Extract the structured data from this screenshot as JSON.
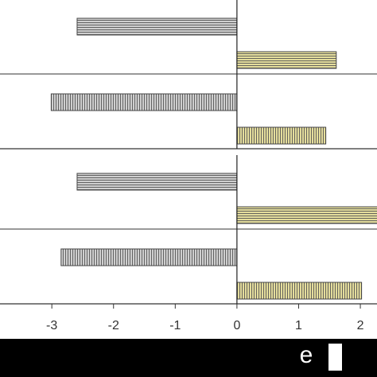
{
  "chart_data": [
    {
      "type": "bar",
      "orientation": "horizontal",
      "categories": [
        null,
        null
      ],
      "series": [
        {
          "color": "#cfcfcf",
          "values": [
            -2.59,
            -3.01
          ]
        },
        {
          "color": "#e4dd9c",
          "values": [
            1.61,
            1.44
          ]
        }
      ],
      "xlim": [
        -3.84,
        2.27
      ]
    },
    {
      "type": "bar",
      "orientation": "horizontal",
      "categories": [
        null,
        null
      ],
      "series": [
        {
          "color": "#cfcfcf",
          "values": [
            -2.59,
            -2.85
          ]
        },
        {
          "color": "#e4dd9c",
          "values": [
            2.3,
            2.02
          ]
        }
      ],
      "xlim": [
        -3.84,
        2.27
      ],
      "xticks": [
        -3,
        -2,
        -1,
        0,
        1,
        2
      ]
    }
  ],
  "legend_text": "e"
}
